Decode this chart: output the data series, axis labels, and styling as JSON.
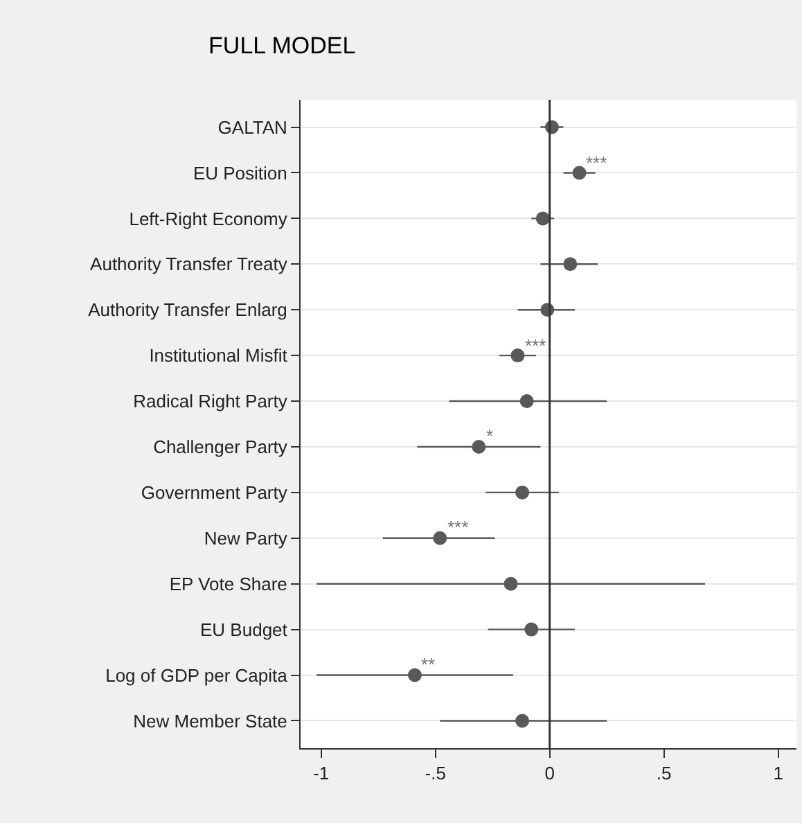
{
  "chart_data": {
    "type": "scatter",
    "title": "FULL MODEL",
    "categories": [
      "GALTAN",
      "EU Position",
      "Left-Right Economy",
      "Authority Transfer Treaty",
      "Authority Transfer Enlarg",
      "Institutional Misfit",
      "Radical Right Party",
      "Challenger Party",
      "Government Party",
      "New Party",
      "EP Vote Share",
      "EU Budget",
      "Log of GDP per Capita",
      "New Member State"
    ],
    "orientation": "horizontal",
    "series": [
      {
        "color": "#595959",
        "values": [
          0.01,
          0.13,
          -0.03,
          0.09,
          -0.01,
          -0.14,
          -0.1,
          -0.31,
          -0.12,
          -0.48,
          -0.17,
          -0.08,
          -0.59,
          -0.12
        ],
        "errors": [
          [
            -0.04,
            0.06
          ],
          [
            0.06,
            0.2
          ],
          [
            -0.08,
            0.02
          ],
          [
            -0.04,
            0.21
          ],
          [
            -0.14,
            0.11
          ],
          [
            -0.22,
            -0.06
          ],
          [
            -0.44,
            0.25
          ],
          [
            -0.58,
            -0.04
          ],
          [
            -0.28,
            0.04
          ],
          [
            -0.73,
            -0.24
          ],
          [
            -1.02,
            0.68
          ],
          [
            -0.27,
            0.11
          ],
          [
            -1.02,
            -0.16
          ],
          [
            -0.48,
            0.25
          ]
        ]
      }
    ],
    "xlim": [
      -1.09,
      1.08
    ],
    "xticks": [
      -1,
      {
        "value": -0.5,
        "label": "-.5"
      },
      0,
      {
        "value": 0.5,
        "label": ".5"
      },
      1
    ],
    "ref_lines": [
      {
        "axis": "x",
        "value": 0,
        "color": "#333333"
      }
    ],
    "annotations": [
      {
        "text": "***",
        "x": 0.13,
        "y": "EU Position"
      },
      {
        "text": "***",
        "x": -0.14,
        "y": "Institutional Misfit"
      },
      {
        "text": "*",
        "x": -0.31,
        "y": "Challenger Party"
      },
      {
        "text": "***",
        "x": -0.48,
        "y": "New Party"
      },
      {
        "text": "**",
        "x": -0.59,
        "y": "Log of GDP per Capita"
      }
    ],
    "grid": "y",
    "marker": "circle"
  }
}
